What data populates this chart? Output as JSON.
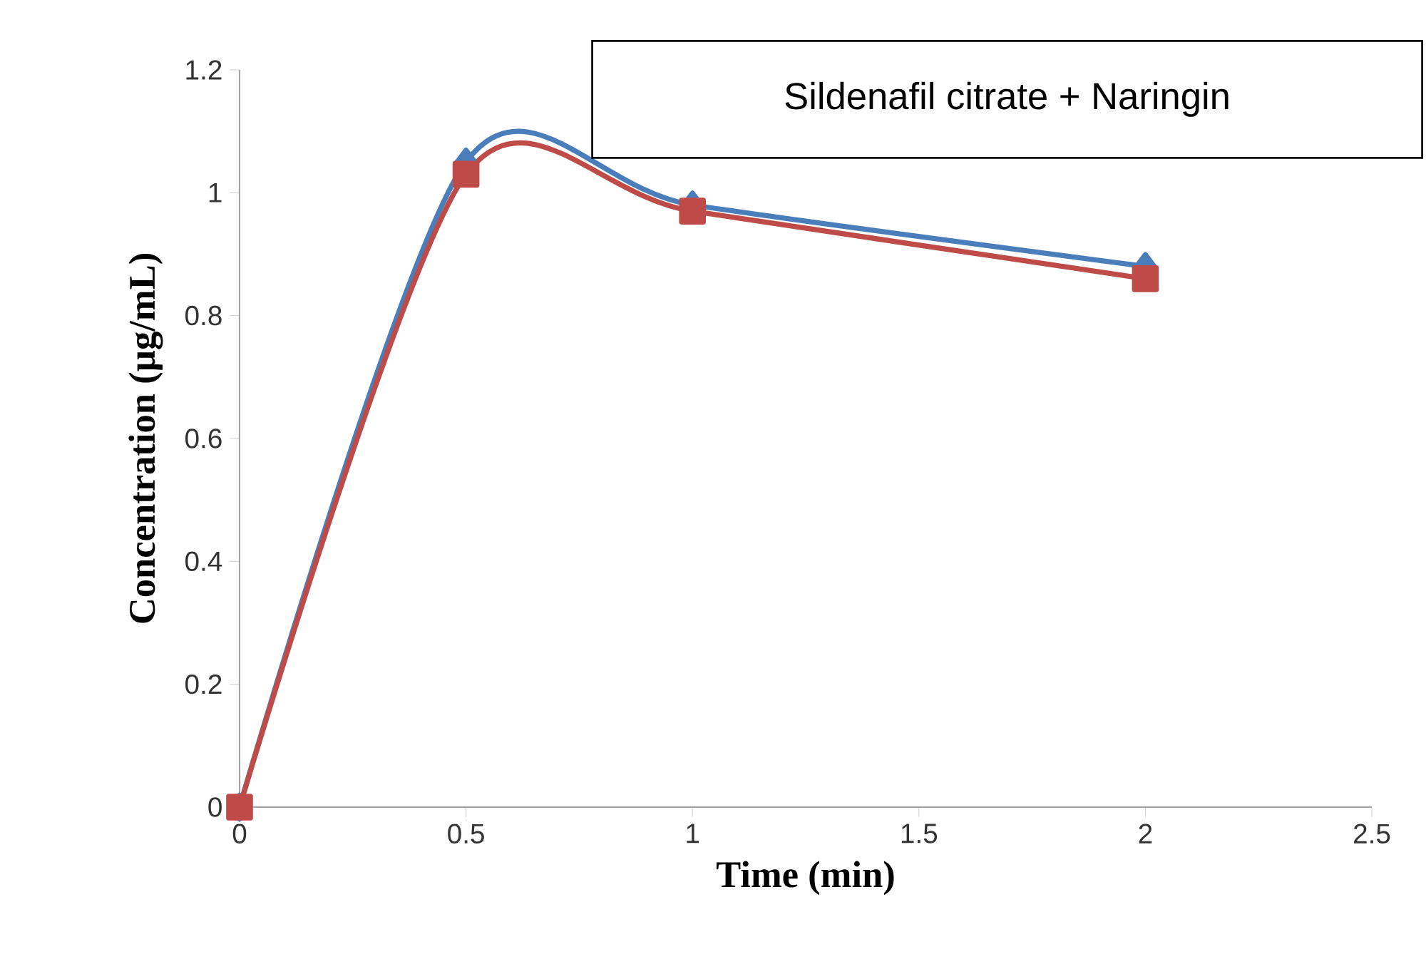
{
  "chart_data": {
    "type": "line",
    "title": "Sildenafil citrate + Naringin",
    "xlabel": "Time (min)",
    "ylabel": "Concentration (µg/mL)",
    "x": [
      0,
      0.5,
      1,
      2
    ],
    "series": [
      {
        "color": "#4a7ebb",
        "marker": "diamond",
        "values": [
          0,
          1.05,
          0.98,
          0.88
        ]
      },
      {
        "color": "#be4b48",
        "marker": "square",
        "values": [
          0,
          1.03,
          0.97,
          0.86
        ]
      }
    ],
    "xlim": [
      0,
      2.5
    ],
    "xticks": [
      0,
      0.5,
      1,
      1.5,
      2,
      2.5
    ],
    "ylim": [
      0,
      1.2
    ],
    "yticks": [
      0,
      0.2,
      0.4,
      0.6,
      0.8,
      1,
      1.2
    ],
    "grid": false,
    "line_style": "solid"
  }
}
